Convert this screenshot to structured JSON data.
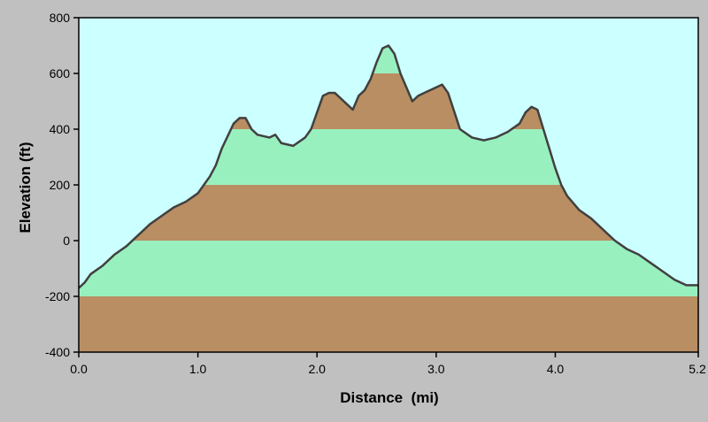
{
  "chart_data": {
    "type": "area",
    "title": "",
    "xlabel": "Distance  (mi)",
    "ylabel": "Elevation (ft)",
    "xlim": [
      0,
      5.2
    ],
    "ylim": [
      -400,
      800
    ],
    "x_ticks": [
      "0.0",
      "1.0",
      "2.0",
      "3.0",
      "4.0",
      "5.2"
    ],
    "x_tick_values": [
      0,
      1,
      2,
      3,
      4,
      5.2
    ],
    "y_ticks": [
      "800",
      "600",
      "400",
      "200",
      "0",
      "-200",
      "-400"
    ],
    "y_tick_values": [
      800,
      600,
      400,
      200,
      0,
      -200,
      -400
    ],
    "grid": false,
    "legend": "none",
    "band_step": 200,
    "colors": {
      "sky": "#ccffff",
      "band_brown": "#b98e62",
      "band_green": "#99f0bf",
      "profile_line": "#404040",
      "frame": "#000000",
      "window": "#c0c0c0"
    },
    "series": [
      {
        "x": [
          0.0,
          0.05,
          0.1,
          0.2,
          0.3,
          0.4,
          0.5,
          0.6,
          0.7,
          0.8,
          0.9,
          1.0,
          1.05,
          1.1,
          1.15,
          1.2,
          1.3,
          1.35,
          1.4,
          1.45,
          1.5,
          1.6,
          1.65,
          1.7,
          1.8,
          1.9,
          1.95,
          2.0,
          2.05,
          2.1,
          2.15,
          2.25,
          2.3,
          2.35,
          2.4,
          2.45,
          2.5,
          2.55,
          2.6,
          2.65,
          2.7,
          2.75,
          2.8,
          2.85,
          2.9,
          2.95,
          3.0,
          3.05,
          3.1,
          3.2,
          3.3,
          3.4,
          3.5,
          3.55,
          3.6,
          3.7,
          3.75,
          3.8,
          3.85,
          3.9,
          3.95,
          4.0,
          4.05,
          4.1,
          4.2,
          4.3,
          4.4,
          4.5,
          4.6,
          4.7,
          4.8,
          4.9,
          5.0,
          5.1,
          5.15,
          5.2
        ],
        "y": [
          -170,
          -150,
          -120,
          -90,
          -50,
          -20,
          20,
          60,
          90,
          120,
          140,
          170,
          200,
          230,
          270,
          330,
          420,
          440,
          440,
          400,
          380,
          370,
          380,
          350,
          340,
          370,
          400,
          460,
          520,
          530,
          530,
          490,
          470,
          520,
          540,
          580,
          640,
          690,
          700,
          670,
          600,
          550,
          500,
          520,
          530,
          540,
          550,
          560,
          530,
          400,
          370,
          360,
          370,
          380,
          390,
          420,
          460,
          480,
          470,
          400,
          330,
          260,
          200,
          160,
          110,
          80,
          40,
          0,
          -30,
          -50,
          -80,
          -110,
          -140,
          -160,
          -160,
          -160
        ]
      }
    ]
  }
}
